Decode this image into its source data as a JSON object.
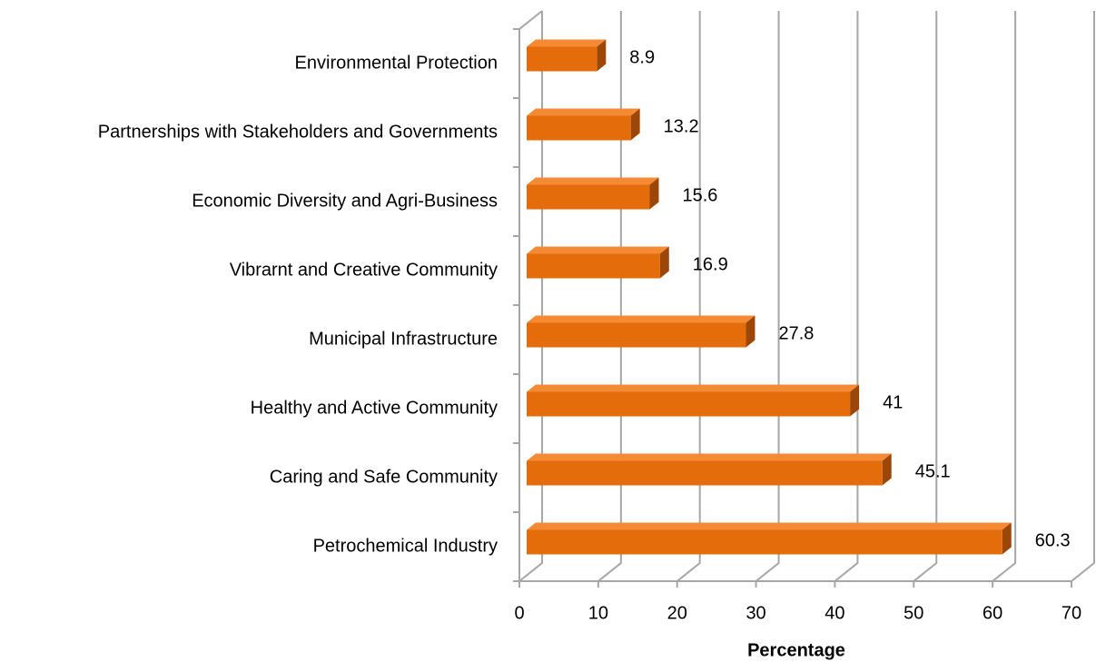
{
  "chart_data": {
    "type": "bar3d_horizontal",
    "categories": [
      "Environmental Protection",
      "Partnerships with Stakeholders and Governments",
      "Economic Diversity and Agri-Business",
      "Vibrarnt and Creative Community",
      "Municipal Infrastructure",
      "Healthy and Active Community",
      "Caring and Safe Community",
      "Petrochemical Industry"
    ],
    "values": [
      8.9,
      13.2,
      15.6,
      16.9,
      27.8,
      41,
      45.1,
      60.3
    ],
    "color": "#e46c0a",
    "xlabel": "Percentage",
    "xlim": [
      0,
      70
    ],
    "xticks": [
      0,
      10,
      20,
      30,
      40,
      50,
      60,
      70
    ],
    "grid": true
  }
}
